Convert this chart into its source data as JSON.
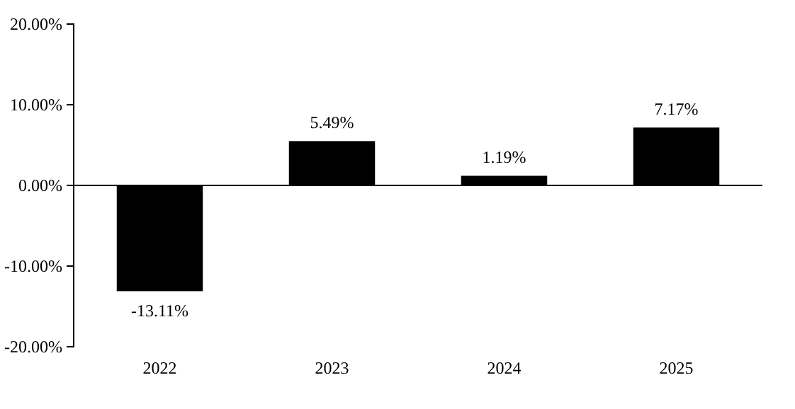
{
  "chart_data": {
    "type": "bar",
    "categories": [
      "2022",
      "2023",
      "2024",
      "2025"
    ],
    "values": [
      -13.11,
      5.49,
      1.19,
      7.17
    ],
    "color": "#000000",
    "value_labels": [
      "-13.11%",
      "5.49%",
      "1.19%",
      "7.17%"
    ],
    "ylim": [
      -20,
      20
    ],
    "yticks": [
      {
        "value": -20,
        "label": "-20.00%"
      },
      {
        "value": -10,
        "label": "-10.00%"
      },
      {
        "value": 0,
        "label": "0.00%"
      },
      {
        "value": 10,
        "label": "10.00%"
      },
      {
        "value": 20,
        "label": "20.00%"
      }
    ]
  }
}
